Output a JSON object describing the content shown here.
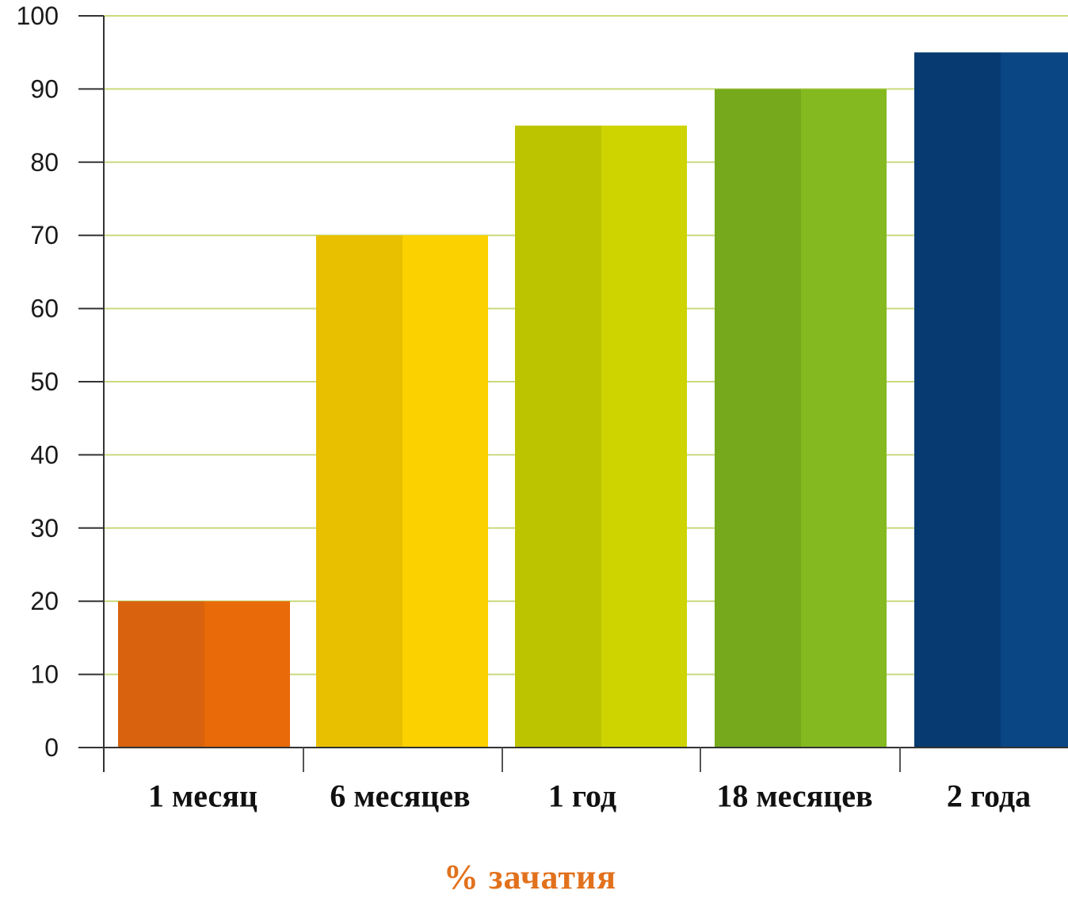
{
  "chart_data": {
    "type": "bar",
    "categories": [
      "1 месяц",
      "6 месяцев",
      "1 год",
      "18 месяцев",
      "2 года"
    ],
    "values": [
      20,
      70,
      85,
      90,
      95
    ],
    "bar_colors": [
      [
        "#d8620e",
        "#e86a08"
      ],
      [
        "#e8c000",
        "#fbd100"
      ],
      [
        "#bcc400",
        "#cdd400"
      ],
      [
        "#76aa1c",
        "#84ba1f"
      ],
      [
        "#063a70",
        "#0a4584"
      ]
    ],
    "ylim": [
      0,
      100
    ],
    "yticks": [
      0,
      10,
      20,
      30,
      40,
      50,
      60,
      70,
      80,
      90,
      100
    ],
    "grid": true,
    "grid_color": "#c8da7e",
    "caption": "% зачатия",
    "caption_color": "#e2711d"
  }
}
